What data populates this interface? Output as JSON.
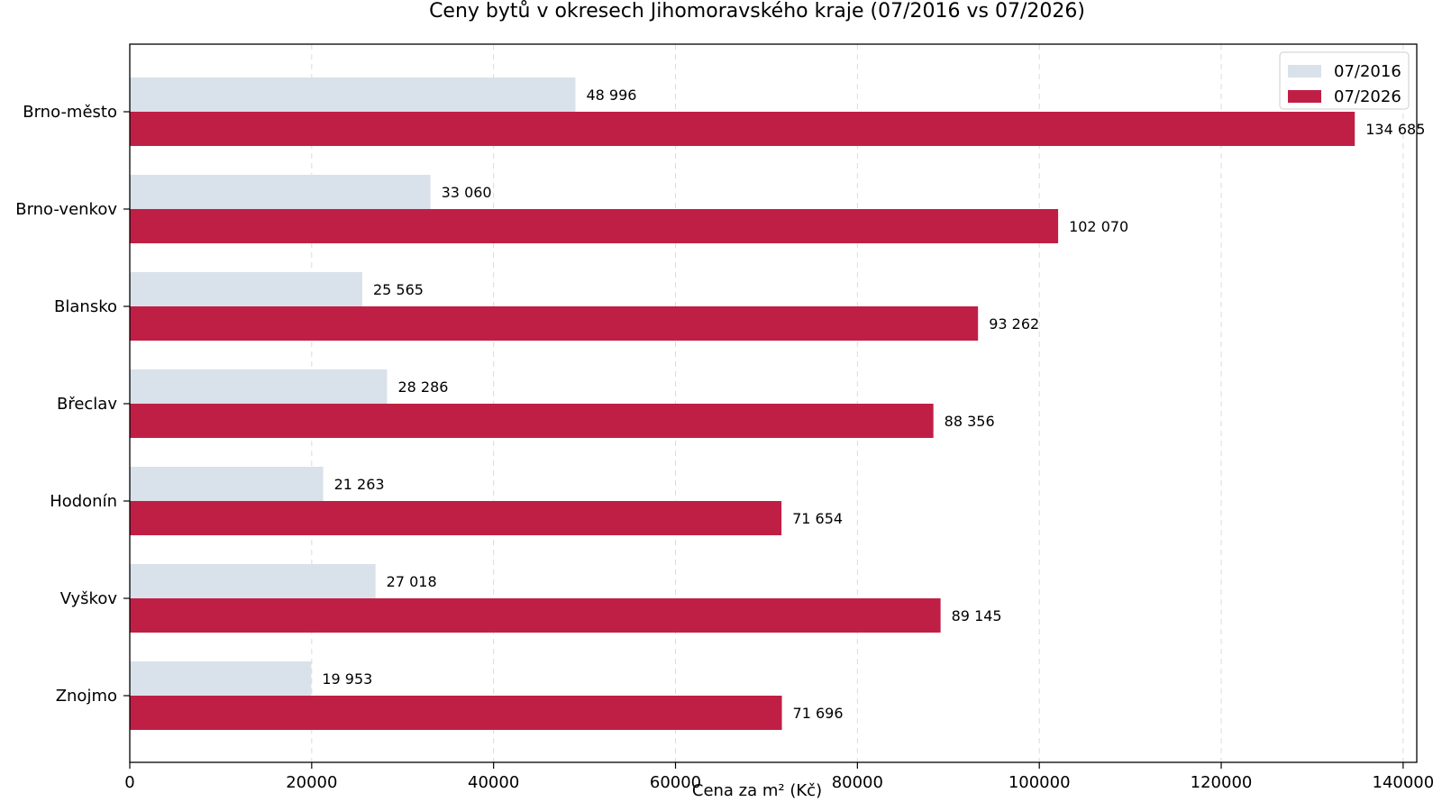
{
  "chart_data": {
    "type": "bar",
    "orientation": "horizontal",
    "title": "Ceny bytů v okresech Jihomoravského kraje (07/2016 vs 07/2026)",
    "xlabel": "Cena za m² (Kč)",
    "ylabel": "",
    "categories": [
      "Brno-město",
      "Brno-venkov",
      "Blansko",
      "Břeclav",
      "Hodonín",
      "Vyškov",
      "Znojmo"
    ],
    "series": [
      {
        "name": "07/2016",
        "color": "#d9e1ea",
        "values": [
          48996,
          33060,
          25565,
          28286,
          21263,
          27018,
          19953
        ],
        "labels": [
          "48 996",
          "33 060",
          "25 565",
          "28 286",
          "21 263",
          "27 018",
          "19 953"
        ]
      },
      {
        "name": "07/2026",
        "color": "#c01f45",
        "values": [
          134685,
          102070,
          93262,
          88356,
          71654,
          89145,
          71696
        ],
        "labels": [
          "134 685",
          "102 070",
          "93 262",
          "88 356",
          "71 654",
          "89 145",
          "71 696"
        ]
      }
    ],
    "xlim": [
      0,
      141500
    ],
    "xticks": [
      0,
      20000,
      40000,
      60000,
      80000,
      100000,
      120000,
      140000
    ],
    "xtick_labels": [
      "0",
      "20000",
      "40000",
      "60000",
      "80000",
      "100000",
      "120000",
      "140000"
    ],
    "grid": "vertical dashed",
    "legend_position": "top-right"
  }
}
